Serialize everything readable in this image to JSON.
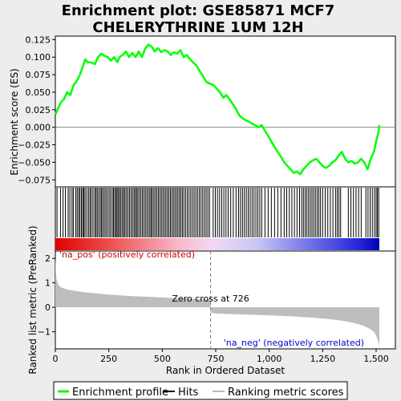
{
  "chart_data": {
    "type": "line",
    "title": "Enrichment plot: GSE85871 MCF7 CHELERYTHRINE 1UM 12H",
    "title_lines": [
      "Enrichment plot: GSE85871 MCF7",
      "CHELERYTHRINE 1UM 12H"
    ],
    "xlabel": "Rank in Ordered Dataset",
    "top_panel": {
      "ylabel": "Enrichment score (ES)",
      "ylim": [
        -0.085,
        0.13
      ],
      "yticks": [
        -0.075,
        -0.05,
        -0.025,
        0.0,
        0.025,
        0.05,
        0.075,
        0.1,
        0.125
      ],
      "ytick_labels": [
        "−0.075",
        "−0.050",
        "−0.025",
        "0.000",
        "0.025",
        "0.050",
        "0.075",
        "0.100",
        "0.125"
      ],
      "series": [
        {
          "name": "Enrichment profile",
          "color": "#00ff00",
          "x": [
            0,
            10,
            25,
            40,
            55,
            70,
            85,
            100,
            115,
            130,
            140,
            150,
            170,
            185,
            200,
            215,
            230,
            245,
            260,
            275,
            290,
            300,
            315,
            330,
            345,
            360,
            375,
            390,
            405,
            420,
            435,
            450,
            465,
            480,
            495,
            510,
            525,
            540,
            555,
            570,
            585,
            600,
            615,
            630,
            645,
            660,
            675,
            690,
            705,
            715,
            726,
            740,
            755,
            770,
            785,
            800,
            815,
            830,
            845,
            860,
            875,
            890,
            905,
            920,
            935,
            950,
            965,
            980,
            995,
            1010,
            1025,
            1040,
            1055,
            1070,
            1085,
            1100,
            1115,
            1130,
            1145,
            1160,
            1175,
            1190,
            1205,
            1220,
            1235,
            1250,
            1265,
            1280,
            1295,
            1310,
            1325,
            1340,
            1355,
            1370,
            1385,
            1400,
            1415,
            1430,
            1445,
            1460,
            1475,
            1490,
            1500,
            1510,
            1515
          ],
          "values": [
            0.018,
            0.025,
            0.035,
            0.04,
            0.05,
            0.046,
            0.06,
            0.066,
            0.075,
            0.088,
            0.097,
            0.093,
            0.092,
            0.09,
            0.1,
            0.105,
            0.102,
            0.1,
            0.095,
            0.1,
            0.093,
            0.1,
            0.103,
            0.108,
            0.1,
            0.106,
            0.1,
            0.108,
            0.1,
            0.112,
            0.118,
            0.115,
            0.108,
            0.113,
            0.107,
            0.11,
            0.108,
            0.103,
            0.107,
            0.105,
            0.11,
            0.1,
            0.103,
            0.097,
            0.092,
            0.088,
            0.08,
            0.073,
            0.065,
            0.063,
            0.062,
            0.06,
            0.055,
            0.05,
            0.042,
            0.046,
            0.04,
            0.033,
            0.026,
            0.017,
            0.013,
            0.01,
            0.008,
            0.005,
            0.003,
            0.0,
            0.003,
            -0.005,
            -0.012,
            -0.02,
            -0.028,
            -0.035,
            -0.042,
            -0.05,
            -0.055,
            -0.06,
            -0.065,
            -0.063,
            -0.067,
            -0.06,
            -0.055,
            -0.05,
            -0.047,
            -0.045,
            -0.05,
            -0.055,
            -0.058,
            -0.055,
            -0.05,
            -0.047,
            -0.04,
            -0.035,
            -0.045,
            -0.05,
            -0.048,
            -0.052,
            -0.05,
            -0.045,
            -0.05,
            -0.06,
            -0.045,
            -0.035,
            -0.02,
            -0.008,
            0.003
          ]
        }
      ],
      "zero_line": 0.0
    },
    "hits_panel": {
      "legend_name": "Hits",
      "hit_positions": [
        8,
        24,
        36,
        47,
        60,
        68,
        78,
        84,
        95,
        102,
        109,
        115,
        122,
        128,
        133,
        139,
        147,
        155,
        162,
        168,
        176,
        184,
        190,
        196,
        203,
        210,
        216,
        222,
        229,
        236,
        243,
        251,
        258,
        266,
        272,
        278,
        284,
        289,
        295,
        301,
        307,
        314,
        320,
        326,
        333,
        340,
        347,
        354,
        361,
        368,
        374,
        380,
        386,
        393,
        400,
        407,
        414,
        421,
        428,
        435,
        442,
        448,
        454,
        461,
        468,
        475,
        482,
        489,
        496,
        503,
        510,
        517,
        524,
        531,
        538,
        545,
        552,
        559,
        566,
        573,
        580,
        587,
        594,
        601,
        609,
        617,
        625,
        633,
        641,
        649,
        657,
        665,
        673,
        681,
        689,
        697,
        705,
        713,
        721,
        738,
        748,
        758,
        768,
        778,
        788,
        798,
        808,
        820,
        832,
        845,
        857,
        866,
        875,
        884,
        893,
        902,
        911,
        920,
        929,
        938,
        947,
        956,
        965,
        980,
        995,
        1010,
        1025,
        1040,
        1055,
        1070,
        1082,
        1094,
        1106,
        1118,
        1130,
        1142,
        1152,
        1160,
        1168,
        1176,
        1184,
        1192,
        1200,
        1208,
        1216,
        1224,
        1232,
        1240,
        1250,
        1262,
        1274,
        1286,
        1298,
        1310,
        1318,
        1326,
        1334,
        1370,
        1382,
        1394,
        1406,
        1418,
        1430,
        1452,
        1462,
        1472,
        1482,
        1492,
        1500,
        1506,
        1512
      ]
    },
    "ranked_panel": {
      "legend_name": "Ranking metric scores",
      "ylabel": "Ranked list metric (PreRanked)",
      "ylim": [
        -1.7,
        2.3
      ],
      "yticks": [
        -1,
        0,
        1,
        2
      ],
      "ytick_labels": [
        "−1",
        "0",
        "1",
        "2"
      ],
      "x": [
        0,
        5,
        15,
        30,
        60,
        100,
        150,
        250,
        350,
        450,
        550,
        650,
        700,
        725,
        726,
        740,
        800,
        900,
        1000,
        1100,
        1200,
        1300,
        1350,
        1400,
        1440,
        1470,
        1490,
        1500,
        1508,
        1515
      ],
      "values": [
        2.0,
        1.2,
        0.9,
        0.8,
        0.72,
        0.66,
        0.6,
        0.52,
        0.46,
        0.42,
        0.38,
        0.35,
        0.33,
        0.32,
        -0.2,
        -0.25,
        -0.27,
        -0.3,
        -0.33,
        -0.37,
        -0.42,
        -0.5,
        -0.56,
        -0.65,
        -0.75,
        -0.88,
        -1.0,
        -1.15,
        -1.35,
        -1.6
      ],
      "zero_cross": 726,
      "zero_cross_label": "Zero cross at 726",
      "pos_label": "'na_pos' (positively correlated)",
      "neg_label": "'na_neg' (negatively correlated)",
      "pos_color": "#cc0000",
      "neg_color": "#0000cc"
    },
    "xlim": [
      0,
      1590
    ],
    "xticks": [
      0,
      250,
      500,
      750,
      1000,
      1250,
      1500
    ],
    "xtick_labels": [
      "0",
      "250",
      "500",
      "750",
      "1,000",
      "1,250",
      "1,500"
    ],
    "n_genes": 1515,
    "legend": {
      "placement": "bottom",
      "entries": [
        "Enrichment profile",
        "Hits",
        "Ranking metric scores"
      ]
    }
  }
}
